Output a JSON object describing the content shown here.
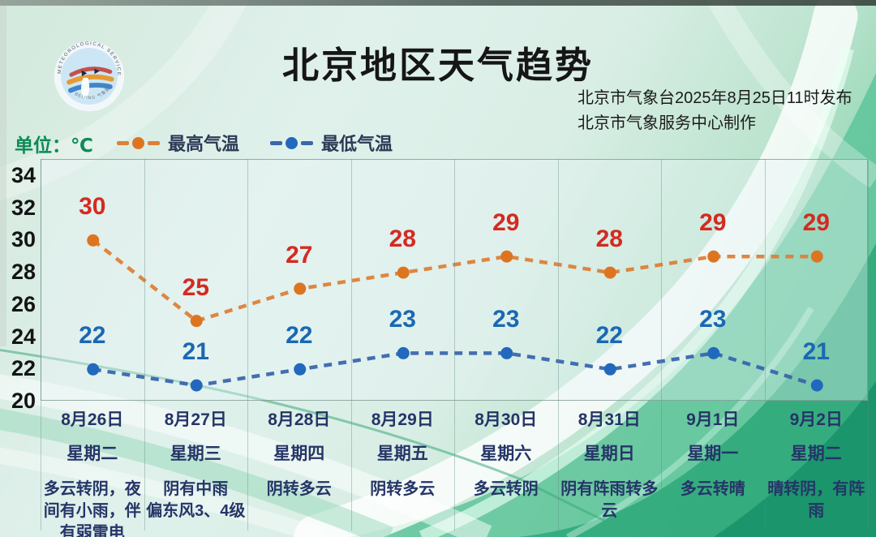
{
  "header": {
    "title": "北京地区天气趋势",
    "issued_line1": "北京市气象台2025年8月25日11时发布",
    "issued_line2": "北京市气象服务中心制作",
    "unit_label": "单位：℃",
    "logo": {
      "arc_text_top": "METEOROLOGICAL SERVICE",
      "arc_text_bottom": "BEIJING 气象服务"
    }
  },
  "colors": {
    "title": "#161616",
    "unit_green": "#0c8a54",
    "high_line": "#dd8038",
    "high_marker": "#dd7520",
    "high_value_label": "#d42a21",
    "low_line": "#3a66ad",
    "low_marker": "#2268bd",
    "low_value_label": "#1a68b4",
    "axis_text": "#141414",
    "day_text": "#253567",
    "bg_green_deep": "#2fa87a"
  },
  "chart_data": {
    "type": "line",
    "unit": "℃",
    "categories": [
      "8月26日",
      "8月27日",
      "8月28日",
      "8月29日",
      "8月30日",
      "8月31日",
      "9月1日",
      "9月2日"
    ],
    "weekdays": [
      "星期二",
      "星期三",
      "星期四",
      "星期五",
      "星期六",
      "星期日",
      "星期一",
      "星期二"
    ],
    "weather": [
      "多云转阴，夜\n间有小雨，伴\n有弱雷电",
      "阴有中雨\n偏东风3、4级",
      "阴转多云",
      "阴转多云",
      "多云转阴",
      "阴有阵雨转多\n云",
      "多云转晴",
      "晴转阴，有阵\n雨"
    ],
    "series": [
      {
        "name": "最高气温",
        "values": [
          30,
          25,
          27,
          28,
          29,
          28,
          29,
          29
        ],
        "color": "#dd8038",
        "marker_color": "#dd7520",
        "label_color": "#d42a21"
      },
      {
        "name": "最低气温",
        "values": [
          22,
          21,
          22,
          23,
          23,
          22,
          23,
          21
        ],
        "color": "#3a66ad",
        "marker_color": "#2268bd",
        "label_color": "#1a68b4"
      }
    ],
    "ylim": [
      20,
      35
    ],
    "yticks": [
      34,
      32,
      30,
      28,
      26,
      24,
      22,
      20
    ],
    "grid": "vertical-only",
    "legend_position": "top-left"
  }
}
